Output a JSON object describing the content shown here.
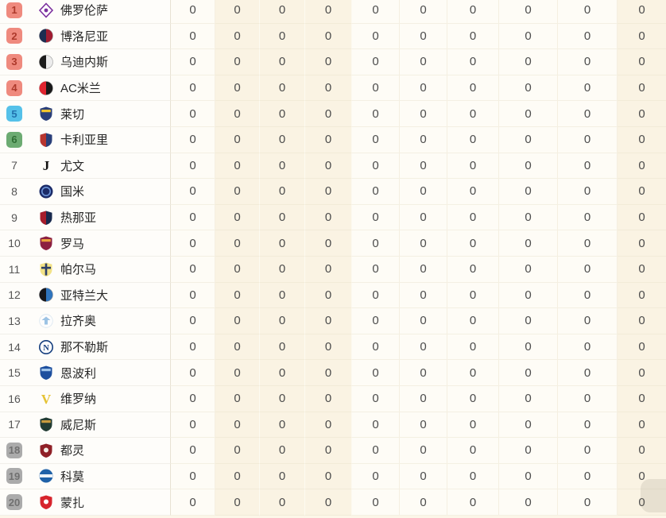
{
  "page": {
    "background": "#fcf6e8"
  },
  "zones": {
    "red": {
      "bg": "#ef8a7e",
      "fg": "#ad392b"
    },
    "blue": {
      "bg": "#55c1e9",
      "fg": "#2272ae"
    },
    "green": {
      "bg": "#6cab72",
      "fg": "#2f6e35"
    },
    "gray": {
      "bg": "#ababab",
      "fg": "#707070"
    }
  },
  "table": {
    "stat_columns": 10,
    "teams": [
      {
        "rank": "1",
        "zone": "red",
        "name": "佛罗伦萨",
        "logo": {
          "type": "diamond",
          "c1": "#7b2f9e",
          "c2": "#ffffff"
        },
        "stats": [
          "0",
          "0",
          "0",
          "0",
          "0",
          "0",
          "0",
          "0",
          "0",
          "0"
        ]
      },
      {
        "rank": "2",
        "zone": "red",
        "name": "博洛尼亚",
        "logo": {
          "type": "split",
          "c1": "#1d2e52",
          "c2": "#a01c31"
        },
        "stats": [
          "0",
          "0",
          "0",
          "0",
          "0",
          "0",
          "0",
          "0",
          "0",
          "0"
        ]
      },
      {
        "rank": "3",
        "zone": "red",
        "name": "乌迪内斯",
        "logo": {
          "type": "split",
          "c1": "#1c1c1c",
          "c2": "#ececec"
        },
        "stats": [
          "0",
          "0",
          "0",
          "0",
          "0",
          "0",
          "0",
          "0",
          "0",
          "0"
        ]
      },
      {
        "rank": "4",
        "zone": "red",
        "name": "AC米兰",
        "logo": {
          "type": "split",
          "c1": "#e02530",
          "c2": "#191919"
        },
        "stats": [
          "0",
          "0",
          "0",
          "0",
          "0",
          "0",
          "0",
          "0",
          "0",
          "0"
        ]
      },
      {
        "rank": "5",
        "zone": "blue",
        "name": "莱切",
        "logo": {
          "type": "shield",
          "c1": "#2a3f79",
          "c2": "#f0c42e"
        },
        "stats": [
          "0",
          "0",
          "0",
          "0",
          "0",
          "0",
          "0",
          "0",
          "0",
          "0"
        ]
      },
      {
        "rank": "6",
        "zone": "green",
        "name": "卡利亚里",
        "logo": {
          "type": "shield-split",
          "c1": "#b8352f",
          "c2": "#2a3f79"
        },
        "stats": [
          "0",
          "0",
          "0",
          "0",
          "0",
          "0",
          "0",
          "0",
          "0",
          "0"
        ]
      },
      {
        "rank": "7",
        "zone": "none",
        "name": "尤文",
        "logo": {
          "type": "letter",
          "c1": "#111111",
          "c2": "#111111",
          "letter": "J"
        },
        "stats": [
          "0",
          "0",
          "0",
          "0",
          "0",
          "0",
          "0",
          "0",
          "0",
          "0"
        ]
      },
      {
        "rank": "8",
        "zone": "none",
        "name": "国米",
        "logo": {
          "type": "fill-ring",
          "c1": "#1b2b68",
          "c2": "#6d95d8"
        },
        "stats": [
          "0",
          "0",
          "0",
          "0",
          "0",
          "0",
          "0",
          "0",
          "0",
          "0"
        ]
      },
      {
        "rank": "9",
        "zone": "none",
        "name": "热那亚",
        "logo": {
          "type": "shield-split",
          "c1": "#a61d2c",
          "c2": "#18294d"
        },
        "stats": [
          "0",
          "0",
          "0",
          "0",
          "0",
          "0",
          "0",
          "0",
          "0",
          "0"
        ]
      },
      {
        "rank": "10",
        "zone": "none",
        "name": "罗马",
        "logo": {
          "type": "shield",
          "c1": "#8c2040",
          "c2": "#e9a33c"
        },
        "stats": [
          "0",
          "0",
          "0",
          "0",
          "0",
          "0",
          "0",
          "0",
          "0",
          "0"
        ]
      },
      {
        "rank": "11",
        "zone": "none",
        "name": "帕尔马",
        "logo": {
          "type": "shield-cross",
          "c1": "#f2e287",
          "c2": "#2c3e68"
        },
        "stats": [
          "0",
          "0",
          "0",
          "0",
          "0",
          "0",
          "0",
          "0",
          "0",
          "0"
        ]
      },
      {
        "rank": "12",
        "zone": "none",
        "name": "亚特兰大",
        "logo": {
          "type": "split",
          "c1": "#17171b",
          "c2": "#2f74bd"
        },
        "stats": [
          "0",
          "0",
          "0",
          "0",
          "0",
          "0",
          "0",
          "0",
          "0",
          "0"
        ]
      },
      {
        "rank": "13",
        "zone": "none",
        "name": "拉齐奥",
        "logo": {
          "type": "white-emblem",
          "c1": "#d9e6f0",
          "c2": "#9cc3e4"
        },
        "stats": [
          "0",
          "0",
          "0",
          "0",
          "0",
          "0",
          "0",
          "0",
          "0",
          "0"
        ]
      },
      {
        "rank": "14",
        "zone": "none",
        "name": "那不勒斯",
        "logo": {
          "type": "ring-letter",
          "c1": "#153e7e",
          "c2": "#153e7e",
          "letter": "N"
        },
        "stats": [
          "0",
          "0",
          "0",
          "0",
          "0",
          "0",
          "0",
          "0",
          "0",
          "0"
        ]
      },
      {
        "rank": "15",
        "zone": "none",
        "name": "恩波利",
        "logo": {
          "type": "shield",
          "c1": "#1d4f9e",
          "c2": "#9fc4ea"
        },
        "stats": [
          "0",
          "0",
          "0",
          "0",
          "0",
          "0",
          "0",
          "0",
          "0",
          "0"
        ]
      },
      {
        "rank": "16",
        "zone": "none",
        "name": "维罗纳",
        "logo": {
          "type": "letter",
          "c1": "#e5c335",
          "c2": "#1b2f5e",
          "letter": "V"
        },
        "stats": [
          "0",
          "0",
          "0",
          "0",
          "0",
          "0",
          "0",
          "0",
          "0",
          "0"
        ]
      },
      {
        "rank": "17",
        "zone": "none",
        "name": "威尼斯",
        "logo": {
          "type": "shield",
          "c1": "#223c33",
          "c2": "#c89b3f"
        },
        "stats": [
          "0",
          "0",
          "0",
          "0",
          "0",
          "0",
          "0",
          "0",
          "0",
          "0"
        ]
      },
      {
        "rank": "18",
        "zone": "gray",
        "name": "都灵",
        "logo": {
          "type": "shield-emblem",
          "c1": "#8f2027",
          "c2": "#f2ece4"
        },
        "stats": [
          "0",
          "0",
          "0",
          "0",
          "0",
          "0",
          "0",
          "0",
          "0",
          "0"
        ]
      },
      {
        "rank": "19",
        "zone": "gray",
        "name": "科莫",
        "logo": {
          "type": "band",
          "c1": "#2062a8",
          "c2": "#ffffff"
        },
        "stats": [
          "0",
          "0",
          "0",
          "0",
          "0",
          "0",
          "0",
          "0",
          "0",
          "0"
        ]
      },
      {
        "rank": "20",
        "zone": "gray",
        "name": "蒙扎",
        "logo": {
          "type": "shield-emblem",
          "c1": "#d7242c",
          "c2": "#ffffff"
        },
        "stats": [
          "0",
          "0",
          "0",
          "0",
          "0",
          "0",
          "0",
          "0",
          "0",
          "0"
        ]
      }
    ]
  }
}
